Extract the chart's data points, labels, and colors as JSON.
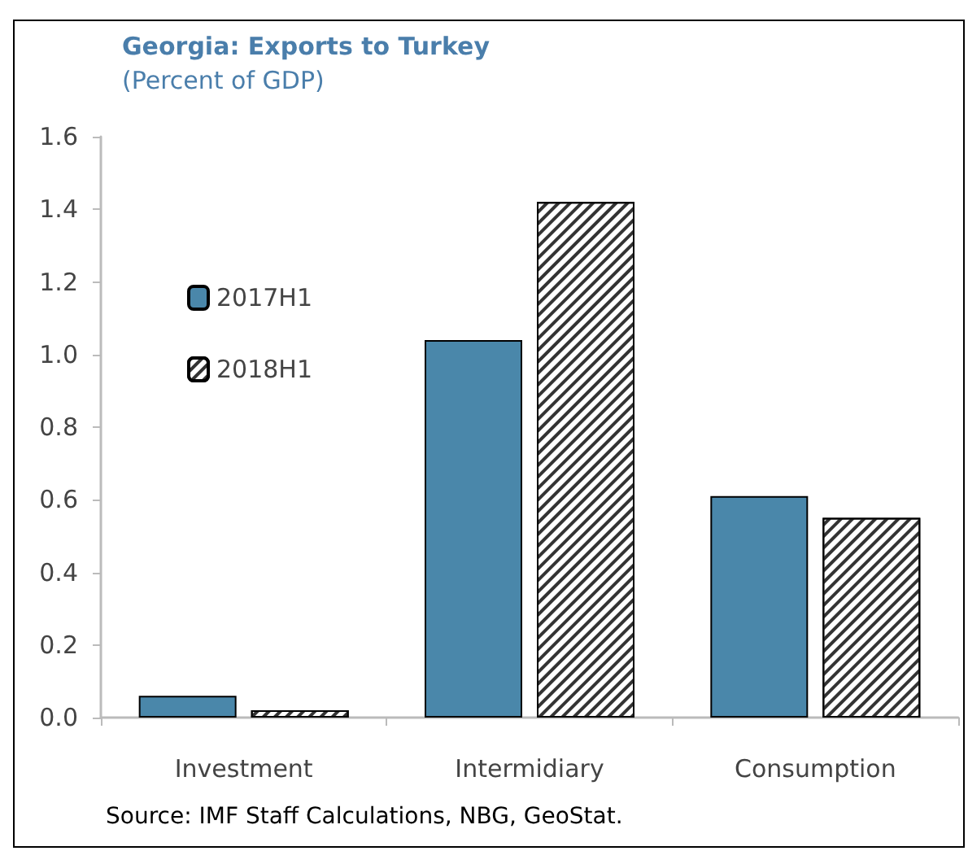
{
  "chart_data": {
    "type": "bar",
    "title": "Georgia: Exports to Turkey",
    "subtitle": "(Percent of GDP)",
    "categories": [
      "Investment",
      "Intermidiary",
      "Consumption"
    ],
    "series": [
      {
        "name": "2017H1",
        "color": "#4a87aa",
        "values": [
          0.06,
          1.04,
          0.61
        ]
      },
      {
        "name": "2018H1",
        "color": "#ffffff",
        "values": [
          0.02,
          1.42,
          0.55
        ]
      }
    ],
    "ylim": [
      0,
      1.6
    ],
    "yticks": [
      "0.0",
      0.2,
      0.4,
      0.6,
      0.8,
      "1.0",
      1.2,
      1.4,
      1.6
    ],
    "grid": false,
    "legend": "left",
    "annotations": [
      "Source: IMF Staff Calculations, NBG, GeoStat."
    ]
  }
}
